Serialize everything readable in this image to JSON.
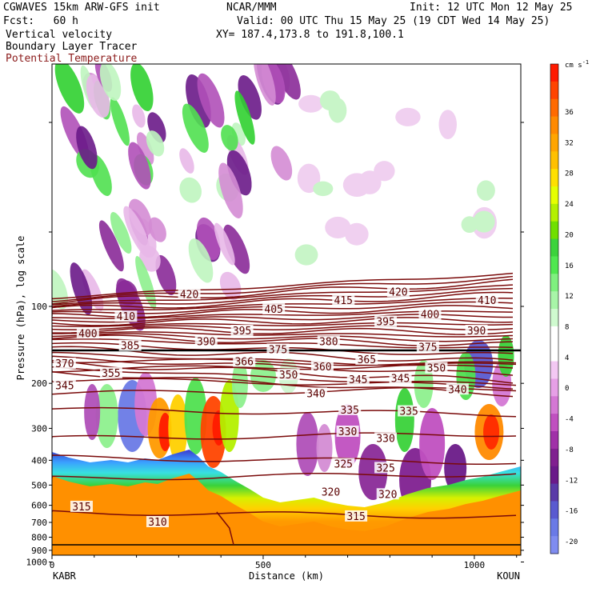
{
  "header": {
    "line1_left": "CGWAVES 15km ARW-GFS init",
    "line1_center": "NCAR/MMM",
    "line1_right": "Init: 12 UTC Mon 12 May 25",
    "line2_left": "Fcst:   60 h",
    "line2_right": "Valid: 00 UTC Thu 15 May 25 (19 CDT Wed 14 May 25)",
    "line3_left": "Vertical velocity",
    "line3_right": "XY= 187.4,173.8 to 191.8,100.1",
    "line4_left": "Boundary Layer Tracer",
    "line5_left": "Potential Temperature"
  },
  "chart_data": {
    "type": "heatmap",
    "title": "CGWAVES 15km ARW-GFS init",
    "xlabel": "Distance (km)",
    "ylabel": "Pressure (hPa), log scale",
    "x_ticks": [
      0,
      500,
      1000
    ],
    "xlim": [
      0,
      1110
    ],
    "y_ticks": [
      100,
      200,
      300,
      400,
      500,
      600,
      700,
      800,
      900,
      1000
    ],
    "y_log": true,
    "endpoints": {
      "left": "KABR",
      "right": "KOUN"
    },
    "colorbar": {
      "unit": "cm s",
      "unit_exp": "-1",
      "ticks": [
        36,
        32,
        28,
        24,
        20,
        16,
        12,
        8,
        4,
        0,
        -4,
        -8,
        -12,
        -16,
        -20
      ],
      "colors": [
        "#ff1a00",
        "#ff4400",
        "#ff6a00",
        "#ff8a00",
        "#ffa500",
        "#ffc000",
        "#ffe000",
        "#e6ff00",
        "#b4f000",
        "#70e000",
        "#3cd33c",
        "#50e850",
        "#7ff07f",
        "#a8f5a8",
        "#cffacf",
        "#ffffff",
        "#ffffff",
        "#f3c8f3",
        "#e6a0e6",
        "#d478d4",
        "#c050c0",
        "#a030a8",
        "#802090",
        "#6a1a8a",
        "#5a3aa8",
        "#5a5ad0",
        "#6a7ae6",
        "#7f8cf0"
      ]
    },
    "contour_labels": [
      {
        "text": "420",
        "x": 325,
        "p": 90
      },
      {
        "text": "420",
        "x": 820,
        "p": 88
      },
      {
        "text": "415",
        "x": 690,
        "p": 95
      },
      {
        "text": "410",
        "x": 175,
        "p": 110
      },
      {
        "text": "410",
        "x": 1030,
        "p": 95
      },
      {
        "text": "405",
        "x": 525,
        "p": 103
      },
      {
        "text": "400",
        "x": 85,
        "p": 128
      },
      {
        "text": "400",
        "x": 895,
        "p": 108
      },
      {
        "text": "395",
        "x": 450,
        "p": 125
      },
      {
        "text": "395",
        "x": 790,
        "p": 115
      },
      {
        "text": "390",
        "x": 365,
        "p": 138
      },
      {
        "text": "390",
        "x": 1005,
        "p": 125
      },
      {
        "text": "385",
        "x": 185,
        "p": 143
      },
      {
        "text": "380",
        "x": 655,
        "p": 138
      },
      {
        "text": "375",
        "x": 535,
        "p": 148
      },
      {
        "text": "375",
        "x": 890,
        "p": 145
      },
      {
        "text": "370",
        "x": 30,
        "p": 168
      },
      {
        "text": "366",
        "x": 455,
        "p": 165
      },
      {
        "text": "365",
        "x": 745,
        "p": 162
      },
      {
        "text": "360",
        "x": 640,
        "p": 173
      },
      {
        "text": "355",
        "x": 140,
        "p": 183
      },
      {
        "text": "350",
        "x": 560,
        "p": 186
      },
      {
        "text": "350",
        "x": 910,
        "p": 175
      },
      {
        "text": "345",
        "x": 30,
        "p": 205
      },
      {
        "text": "345",
        "x": 725,
        "p": 194
      },
      {
        "text": "345",
        "x": 825,
        "p": 192
      },
      {
        "text": "340",
        "x": 625,
        "p": 220
      },
      {
        "text": "340",
        "x": 960,
        "p": 212
      },
      {
        "text": "335",
        "x": 705,
        "p": 255
      },
      {
        "text": "335",
        "x": 845,
        "p": 258
      },
      {
        "text": "330",
        "x": 700,
        "p": 310
      },
      {
        "text": "330",
        "x": 790,
        "p": 330
      },
      {
        "text": "325",
        "x": 690,
        "p": 415
      },
      {
        "text": "325",
        "x": 790,
        "p": 430
      },
      {
        "text": "320",
        "x": 660,
        "p": 535
      },
      {
        "text": "320",
        "x": 795,
        "p": 545
      },
      {
        "text": "315",
        "x": 70,
        "p": 610
      },
      {
        "text": "315",
        "x": 720,
        "p": 665
      },
      {
        "text": "310",
        "x": 250,
        "p": 700
      }
    ]
  }
}
